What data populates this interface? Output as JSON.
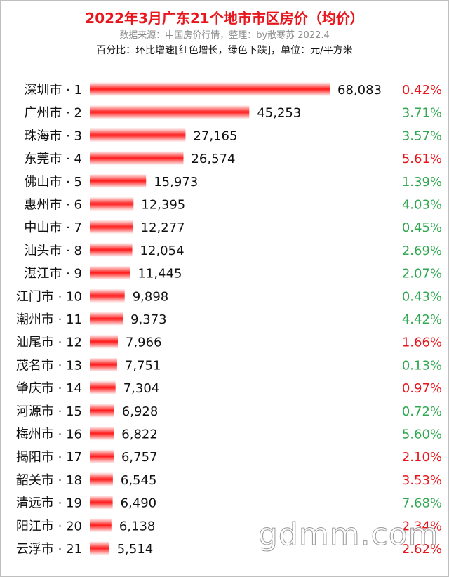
{
  "header": {
    "title": "2022年3月广东21个地市市区房价（均价）",
    "source": "数据来源：中国房价行情，整理：by散寒苏  2022.4",
    "note": "百分比：环比增速[红色增长，绿色下跌]，单位：元/平方米"
  },
  "watermark": "gdmm.com",
  "colors": {
    "bar": "#ff1a1a",
    "increase": "#e8161c",
    "decrease": "#2fa84f",
    "title": "#e8161c"
  },
  "chart_data": {
    "type": "bar",
    "orientation": "horizontal",
    "categories": [
      "深圳市 · 1",
      "广州市 · 2",
      "珠海市 · 3",
      "东莞市 · 4",
      "佛山市 · 5",
      "惠州市 · 6",
      "中山市 · 7",
      "汕头市 · 8",
      "湛江市 · 9",
      "江门市 · 10",
      "潮州市 · 11",
      "汕尾市 · 12",
      "茂名市 · 13",
      "肇庆市 · 14",
      "河源市 · 15",
      "梅州市 · 16",
      "揭阳市 · 17",
      "韶关市 · 18",
      "清远市 · 19",
      "阳江市 · 20",
      "云浮市 · 21"
    ],
    "values": [
      68083,
      45253,
      27165,
      26574,
      15973,
      12395,
      12277,
      12054,
      11445,
      9898,
      9373,
      7966,
      7751,
      7304,
      6928,
      6822,
      6757,
      6545,
      6490,
      6138,
      5514
    ],
    "value_labels": [
      "68,083",
      "45,253",
      "27,165",
      "26,574",
      "15,973",
      "12,395",
      "12,277",
      "12,054",
      "11,445",
      "9,898",
      "9,373",
      "7,966",
      "7,751",
      "7,304",
      "6,928",
      "6,822",
      "6,757",
      "6,545",
      "6,490",
      "6,138",
      "5,514"
    ],
    "changes": [
      "0.42%",
      "3.71%",
      "3.57%",
      "5.61%",
      "1.39%",
      "4.03%",
      "0.45%",
      "2.69%",
      "2.07%",
      "0.43%",
      "4.42%",
      "1.66%",
      "0.13%",
      "0.97%",
      "0.72%",
      "5.60%",
      "2.10%",
      "3.53%",
      "7.68%",
      "2.34%",
      "2.62%"
    ],
    "change_direction": [
      "up",
      "down",
      "down",
      "up",
      "down",
      "down",
      "down",
      "down",
      "down",
      "down",
      "down",
      "up",
      "down",
      "up",
      "down",
      "down",
      "up",
      "up",
      "down",
      "up",
      "up"
    ],
    "xlim": [
      0,
      68083
    ],
    "grid": false,
    "legend": "none"
  }
}
